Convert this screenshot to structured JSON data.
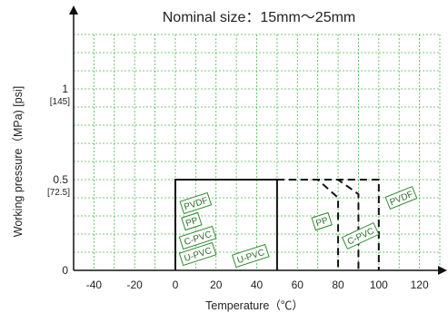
{
  "chart_data": {
    "type": "line",
    "title": "Nominal size：15mm～25mm",
    "xlabel": "Temperature（℃）",
    "ylabel": "Working pressure（MPa) [psi]",
    "xlim": [
      -50,
      130
    ],
    "ylim": [
      0,
      1.3
    ],
    "grid": true,
    "x_ticks": [
      "-40",
      "-20",
      "0",
      "20",
      "40",
      "60",
      "80",
      "100",
      "120"
    ],
    "x_tick_values": [
      -40,
      -20,
      0,
      20,
      40,
      60,
      80,
      100,
      120
    ],
    "y_ticks": [
      {
        "value": 0,
        "label": "0",
        "sublabel": ""
      },
      {
        "value": 0.5,
        "label": "0.5",
        "sublabel": "[72.5]"
      },
      {
        "value": 1,
        "label": "1",
        "sublabel": "[145]"
      }
    ],
    "series": [
      {
        "name": "U-PVC",
        "style": "solid",
        "x": [
          0,
          0,
          50,
          50
        ],
        "y": [
          0,
          0.5,
          0.5,
          0
        ]
      },
      {
        "name": "C-PVC",
        "style": "dashed",
        "x": [
          50,
          80,
          90,
          90
        ],
        "y": [
          0.5,
          0.5,
          0.42,
          0
        ]
      },
      {
        "name": "PP",
        "style": "dashed",
        "x": [
          50,
          70,
          80,
          80
        ],
        "y": [
          0.5,
          0.5,
          0.4,
          0
        ]
      },
      {
        "name": "PVDF",
        "style": "dashed",
        "x": [
          50,
          100,
          100
        ],
        "y": [
          0.5,
          0.5,
          0
        ]
      }
    ],
    "labels": [
      {
        "text": "PVDF",
        "x": 10,
        "y": 0.37,
        "rot": -18
      },
      {
        "text": "PP",
        "x": 8,
        "y": 0.27,
        "rot": -18
      },
      {
        "text": "C-PVC",
        "x": 11,
        "y": 0.18,
        "rot": -18
      },
      {
        "text": "U-PVC",
        "x": 11,
        "y": 0.09,
        "rot": -18
      },
      {
        "text": "U-PVC",
        "x": 37,
        "y": 0.08,
        "rot": -18
      },
      {
        "text": "PP",
        "x": 72,
        "y": 0.27,
        "rot": -18
      },
      {
        "text": "C-PVC",
        "x": 91,
        "y": 0.19,
        "rot": -25
      },
      {
        "text": "PVDF",
        "x": 111,
        "y": 0.4,
        "rot": -22
      }
    ],
    "colors": {
      "grid": "#48b848",
      "line": "#111111",
      "tag_border": "#2e8b2e",
      "tag_text": "#2e6b2e"
    }
  }
}
